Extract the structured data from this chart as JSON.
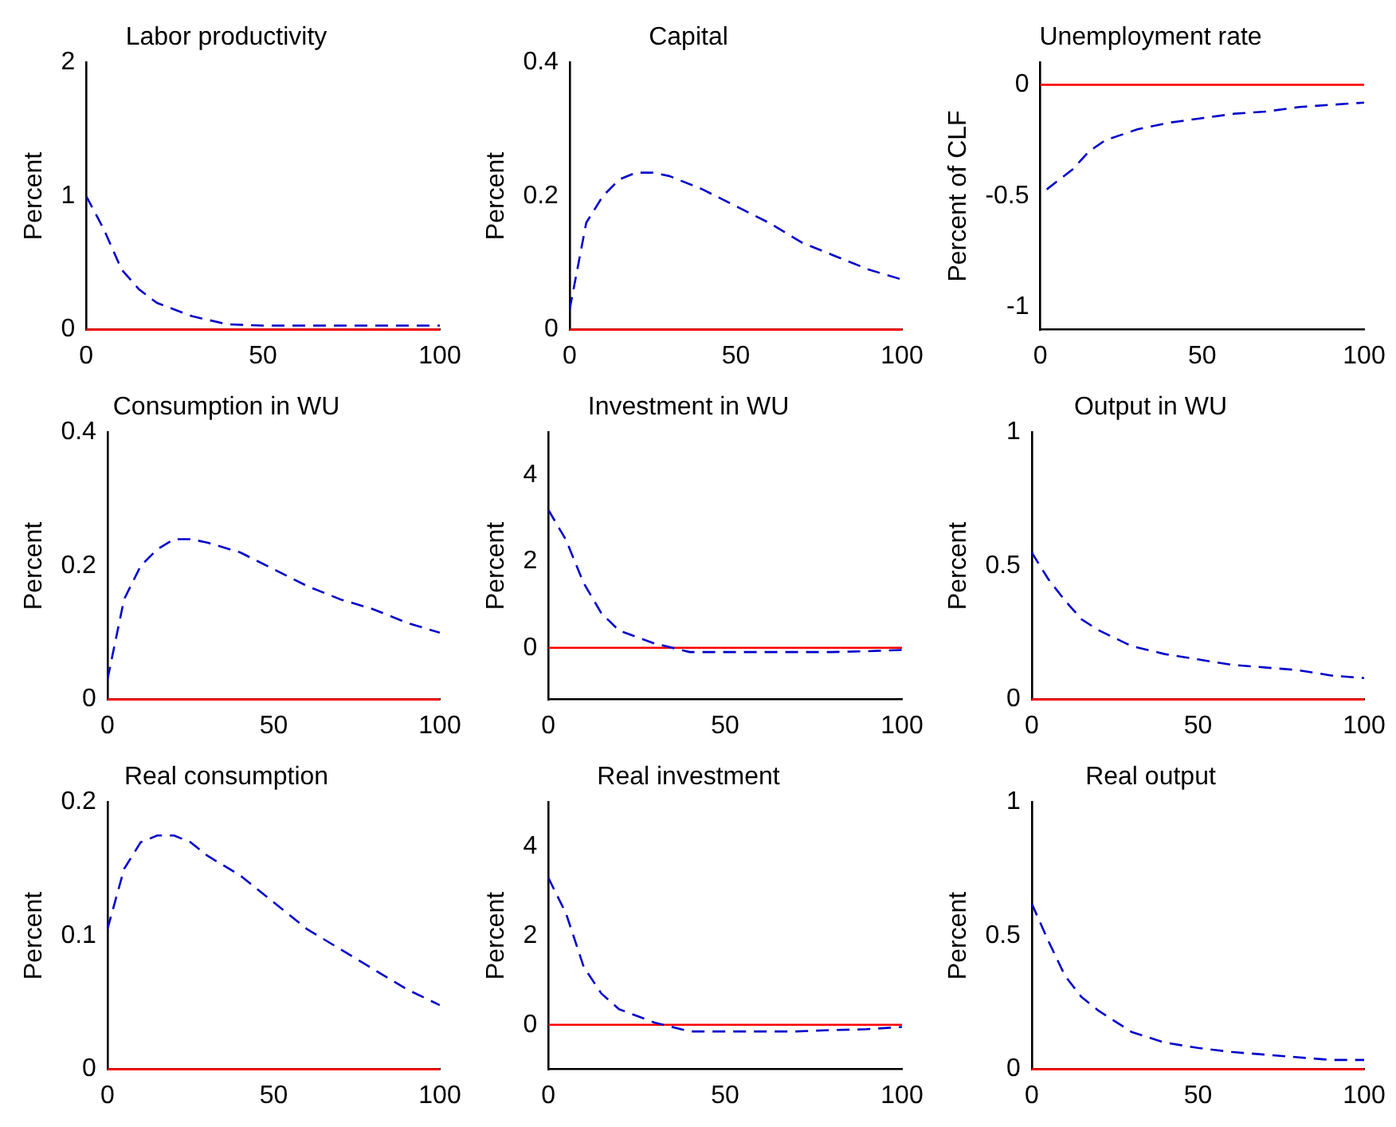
{
  "chart_data": [
    {
      "type": "line",
      "title": "Labor productivity",
      "ylabel": "Percent",
      "x": [
        0,
        5,
        10,
        15,
        20,
        30,
        40,
        50,
        60,
        70,
        80,
        90,
        100
      ],
      "series": [
        {
          "color": "#0000cc",
          "values": [
            1.0,
            0.75,
            0.45,
            0.3,
            0.2,
            0.1,
            0.04,
            0.03,
            0.03,
            0.03,
            0.03,
            0.03,
            0.03
          ]
        }
      ],
      "xlim": [
        0,
        100
      ],
      "xticks": [
        0,
        50,
        100
      ],
      "ylim": [
        0,
        2
      ],
      "yticks": [
        0,
        1,
        2
      ],
      "ref_lines": [
        {
          "axis": "y",
          "value": 0,
          "color": "#ff0000"
        }
      ],
      "line_style": "dashed",
      "grid": false,
      "legend": false
    },
    {
      "type": "line",
      "title": "Capital",
      "ylabel": "Percent",
      "x": [
        0,
        5,
        10,
        15,
        20,
        25,
        30,
        40,
        50,
        60,
        70,
        80,
        90,
        100
      ],
      "series": [
        {
          "color": "#0000cc",
          "values": [
            0.03,
            0.16,
            0.2,
            0.225,
            0.235,
            0.235,
            0.23,
            0.21,
            0.185,
            0.16,
            0.13,
            0.11,
            0.09,
            0.075
          ]
        }
      ],
      "xlim": [
        0,
        100
      ],
      "xticks": [
        0,
        50,
        100
      ],
      "ylim": [
        0,
        0.4
      ],
      "yticks": [
        0,
        0.2,
        0.4
      ],
      "ref_lines": [
        {
          "axis": "y",
          "value": 0,
          "color": "#ff0000"
        }
      ],
      "line_style": "dashed",
      "grid": false,
      "legend": false
    },
    {
      "type": "line",
      "title": "Unemployment rate",
      "ylabel": "Percent of CLF",
      "x": [
        2,
        10,
        15,
        20,
        30,
        40,
        50,
        60,
        70,
        80,
        90,
        100
      ],
      "series": [
        {
          "color": "#0000cc",
          "values": [
            -0.47,
            -0.38,
            -0.3,
            -0.25,
            -0.2,
            -0.17,
            -0.15,
            -0.13,
            -0.12,
            -0.1,
            -0.09,
            -0.08
          ]
        }
      ],
      "xlim": [
        0,
        100
      ],
      "xticks": [
        0,
        50,
        100
      ],
      "ylim": [
        -1.1,
        0.1
      ],
      "yticks": [
        -1,
        -0.5,
        0
      ],
      "ref_lines": [
        {
          "axis": "y",
          "value": 0,
          "color": "#ff0000"
        }
      ],
      "line_style": "dashed",
      "grid": false,
      "legend": false
    },
    {
      "type": "line",
      "title": "Consumption in WU",
      "ylabel": "Percent",
      "x": [
        0,
        5,
        10,
        15,
        20,
        25,
        30,
        40,
        50,
        60,
        70,
        80,
        90,
        100
      ],
      "series": [
        {
          "color": "#0000cc",
          "values": [
            0.03,
            0.15,
            0.2,
            0.225,
            0.24,
            0.24,
            0.235,
            0.22,
            0.195,
            0.17,
            0.15,
            0.135,
            0.115,
            0.1
          ]
        }
      ],
      "xlim": [
        0,
        100
      ],
      "xticks": [
        0,
        50,
        100
      ],
      "ylim": [
        0,
        0.4
      ],
      "yticks": [
        0,
        0.2,
        0.4
      ],
      "ref_lines": [
        {
          "axis": "y",
          "value": 0,
          "color": "#ff0000"
        }
      ],
      "line_style": "dashed",
      "grid": false,
      "legend": false
    },
    {
      "type": "line",
      "title": "Investment in WU",
      "ylabel": "Percent",
      "x": [
        0,
        5,
        10,
        15,
        20,
        30,
        40,
        50,
        60,
        70,
        80,
        90,
        100
      ],
      "series": [
        {
          "color": "#0000cc",
          "values": [
            3.2,
            2.5,
            1.5,
            0.8,
            0.4,
            0.1,
            -0.1,
            -0.1,
            -0.1,
            -0.1,
            -0.1,
            -0.08,
            -0.05
          ]
        }
      ],
      "xlim": [
        0,
        100
      ],
      "xticks": [
        0,
        50,
        100
      ],
      "ylim": [
        -1.2,
        5
      ],
      "yticks": [
        0,
        2,
        4
      ],
      "ref_lines": [
        {
          "axis": "y",
          "value": 0,
          "color": "#ff0000"
        }
      ],
      "line_style": "dashed",
      "grid": false,
      "legend": false
    },
    {
      "type": "line",
      "title": "Output in WU",
      "ylabel": "Percent",
      "x": [
        0,
        5,
        10,
        15,
        20,
        30,
        40,
        50,
        60,
        70,
        80,
        90,
        100
      ],
      "series": [
        {
          "color": "#0000cc",
          "values": [
            0.55,
            0.45,
            0.37,
            0.3,
            0.26,
            0.2,
            0.17,
            0.15,
            0.13,
            0.12,
            0.11,
            0.09,
            0.08
          ]
        }
      ],
      "xlim": [
        0,
        100
      ],
      "xticks": [
        0,
        50,
        100
      ],
      "ylim": [
        0,
        1
      ],
      "yticks": [
        0,
        0.5,
        1
      ],
      "ref_lines": [
        {
          "axis": "y",
          "value": 0,
          "color": "#ff0000"
        }
      ],
      "line_style": "dashed",
      "grid": false,
      "legend": false
    },
    {
      "type": "line",
      "title": "Real consumption",
      "ylabel": "Percent",
      "x": [
        0,
        5,
        10,
        15,
        20,
        25,
        30,
        40,
        50,
        60,
        70,
        80,
        90,
        100
      ],
      "series": [
        {
          "color": "#0000cc",
          "values": [
            0.105,
            0.15,
            0.17,
            0.175,
            0.175,
            0.17,
            0.16,
            0.145,
            0.125,
            0.105,
            0.09,
            0.075,
            0.06,
            0.048
          ]
        }
      ],
      "xlim": [
        0,
        100
      ],
      "xticks": [
        0,
        50,
        100
      ],
      "ylim": [
        0,
        0.2
      ],
      "yticks": [
        0,
        0.1,
        0.2
      ],
      "ref_lines": [
        {
          "axis": "y",
          "value": 0,
          "color": "#ff0000"
        }
      ],
      "line_style": "dashed",
      "grid": false,
      "legend": false
    },
    {
      "type": "line",
      "title": "Real investment",
      "ylabel": "Percent",
      "x": [
        0,
        5,
        10,
        15,
        20,
        30,
        40,
        50,
        60,
        70,
        80,
        90,
        100
      ],
      "series": [
        {
          "color": "#0000cc",
          "values": [
            3.3,
            2.5,
            1.3,
            0.7,
            0.35,
            0.05,
            -0.15,
            -0.15,
            -0.15,
            -0.15,
            -0.12,
            -0.1,
            -0.05
          ]
        }
      ],
      "xlim": [
        0,
        100
      ],
      "xticks": [
        0,
        50,
        100
      ],
      "ylim": [
        -1,
        5
      ],
      "yticks": [
        0,
        2,
        4
      ],
      "ref_lines": [
        {
          "axis": "y",
          "value": 0,
          "color": "#ff0000"
        }
      ],
      "line_style": "dashed",
      "grid": false,
      "legend": false
    },
    {
      "type": "line",
      "title": "Real output",
      "ylabel": "Percent",
      "x": [
        0,
        5,
        10,
        15,
        20,
        30,
        40,
        50,
        60,
        70,
        80,
        90,
        100
      ],
      "series": [
        {
          "color": "#0000cc",
          "values": [
            0.62,
            0.48,
            0.35,
            0.27,
            0.22,
            0.14,
            0.1,
            0.08,
            0.065,
            0.055,
            0.045,
            0.035,
            0.035
          ]
        }
      ],
      "xlim": [
        0,
        100
      ],
      "xticks": [
        0,
        50,
        100
      ],
      "ylim": [
        0,
        1
      ],
      "yticks": [
        0,
        0.5,
        1
      ],
      "ref_lines": [
        {
          "axis": "y",
          "value": 0,
          "color": "#ff0000"
        }
      ],
      "line_style": "dashed",
      "grid": false,
      "legend": false
    }
  ]
}
